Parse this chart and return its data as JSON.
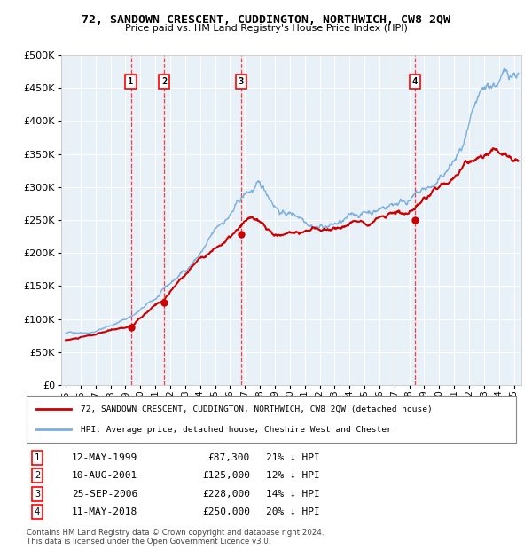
{
  "title": "72, SANDOWN CRESCENT, CUDDINGTON, NORTHWICH, CW8 2QW",
  "subtitle": "Price paid vs. HM Land Registry's House Price Index (HPI)",
  "plot_bg_color": "#e8f0f8",
  "legend_label_red": "72, SANDOWN CRESCENT, CUDDINGTON, NORTHWICH, CW8 2QW (detached house)",
  "legend_label_blue": "HPI: Average price, detached house, Cheshire West and Chester",
  "footer": "Contains HM Land Registry data © Crown copyright and database right 2024.\nThis data is licensed under the Open Government Licence v3.0.",
  "transactions": [
    {
      "num": 1,
      "date": "12-MAY-1999",
      "price": 87300,
      "hpi_pct": "21% ↓ HPI",
      "year": 1999.36
    },
    {
      "num": 2,
      "date": "10-AUG-2001",
      "price": 125000,
      "hpi_pct": "12% ↓ HPI",
      "year": 2001.61
    },
    {
      "num": 3,
      "date": "25-SEP-2006",
      "price": 228000,
      "hpi_pct": "14% ↓ HPI",
      "year": 2006.73
    },
    {
      "num": 4,
      "date": "11-MAY-2018",
      "price": 250000,
      "hpi_pct": "20% ↓ HPI",
      "year": 2018.36
    }
  ],
  "ylim": [
    0,
    500000
  ],
  "yticks": [
    0,
    50000,
    100000,
    150000,
    200000,
    250000,
    300000,
    350000,
    400000,
    450000,
    500000
  ],
  "xlim": [
    1994.7,
    2025.5
  ],
  "xtick_years": [
    1995,
    1996,
    1997,
    1998,
    1999,
    2000,
    2001,
    2002,
    2003,
    2004,
    2005,
    2006,
    2007,
    2008,
    2009,
    2010,
    2011,
    2012,
    2013,
    2014,
    2015,
    2016,
    2017,
    2018,
    2019,
    2020,
    2021,
    2022,
    2023,
    2024,
    2025
  ],
  "red_color": "#cc0000",
  "blue_color": "#7aafdf",
  "marker_color": "#cc0000",
  "hpi_anchors_x": [
    1995.0,
    1997.0,
    1999.0,
    2001.0,
    2003.0,
    2005.0,
    2007.0,
    2007.8,
    2009.5,
    2012.0,
    2014.0,
    2016.0,
    2018.0,
    2020.0,
    2021.5,
    2022.5,
    2023.5,
    2024.5,
    2025.3
  ],
  "hpi_anchors_y": [
    78000,
    85000,
    105000,
    135000,
    175000,
    230000,
    280000,
    290000,
    255000,
    250000,
    258000,
    275000,
    300000,
    315000,
    355000,
    395000,
    410000,
    420000,
    430000
  ],
  "red_anchors_x": [
    1995.0,
    1997.0,
    1999.36,
    2001.61,
    2004.0,
    2006.73,
    2007.5,
    2009.0,
    2011.0,
    2013.0,
    2015.0,
    2017.0,
    2018.36,
    2019.5,
    2021.0,
    2022.0,
    2023.0,
    2024.0,
    2025.3
  ],
  "red_anchors_y": [
    68000,
    75000,
    87300,
    125000,
    185000,
    228000,
    240000,
    208000,
    218000,
    222000,
    235000,
    255000,
    250000,
    265000,
    295000,
    315000,
    330000,
    335000,
    330000
  ]
}
